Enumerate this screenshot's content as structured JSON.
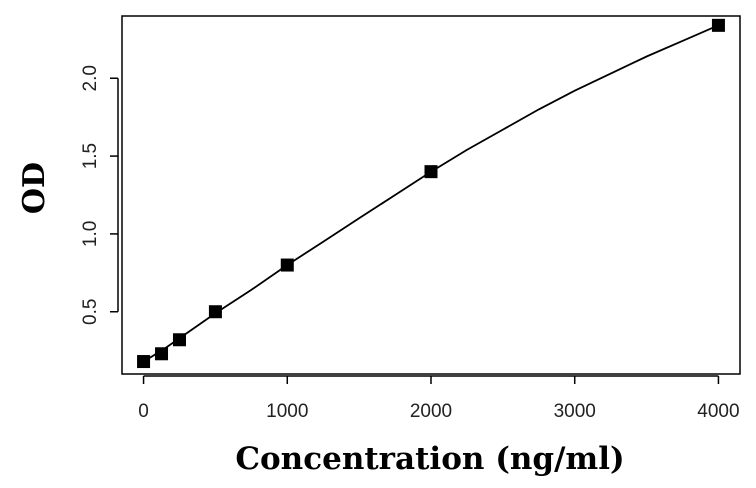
{
  "chart_data": {
    "type": "scatter",
    "title": "",
    "xlabel": "Concentration (ng/ml)",
    "ylabel": "OD",
    "xlim": [
      -150,
      4150
    ],
    "ylim": [
      0.1,
      2.4
    ],
    "x_ticks": [
      0,
      1000,
      2000,
      3000,
      4000
    ],
    "y_ticks": [
      0.5,
      1.0,
      1.5,
      2.0
    ],
    "x_tick_labels": [
      "0",
      "1000",
      "2000",
      "3000",
      "4000"
    ],
    "y_tick_labels": [
      "0.5",
      "1.0",
      "1.5",
      "2.0"
    ],
    "grid": false,
    "legend": "none",
    "series": [
      {
        "marker": "square",
        "color": "#000000",
        "x": [
          0,
          125,
          250,
          500,
          1000,
          2000,
          4000
        ],
        "y": [
          0.18,
          0.23,
          0.32,
          0.5,
          0.8,
          1.4,
          2.34
        ]
      }
    ],
    "fit_curve": {
      "color": "#000000",
      "x": [
        0,
        125,
        250,
        500,
        750,
        1000,
        1250,
        1500,
        1750,
        2000,
        2250,
        2500,
        2750,
        3000,
        3250,
        3500,
        3750,
        4000
      ],
      "y": [
        0.18,
        0.25,
        0.33,
        0.49,
        0.64,
        0.8,
        0.95,
        1.1,
        1.25,
        1.4,
        1.54,
        1.67,
        1.8,
        1.92,
        2.03,
        2.14,
        2.24,
        2.34
      ]
    }
  }
}
